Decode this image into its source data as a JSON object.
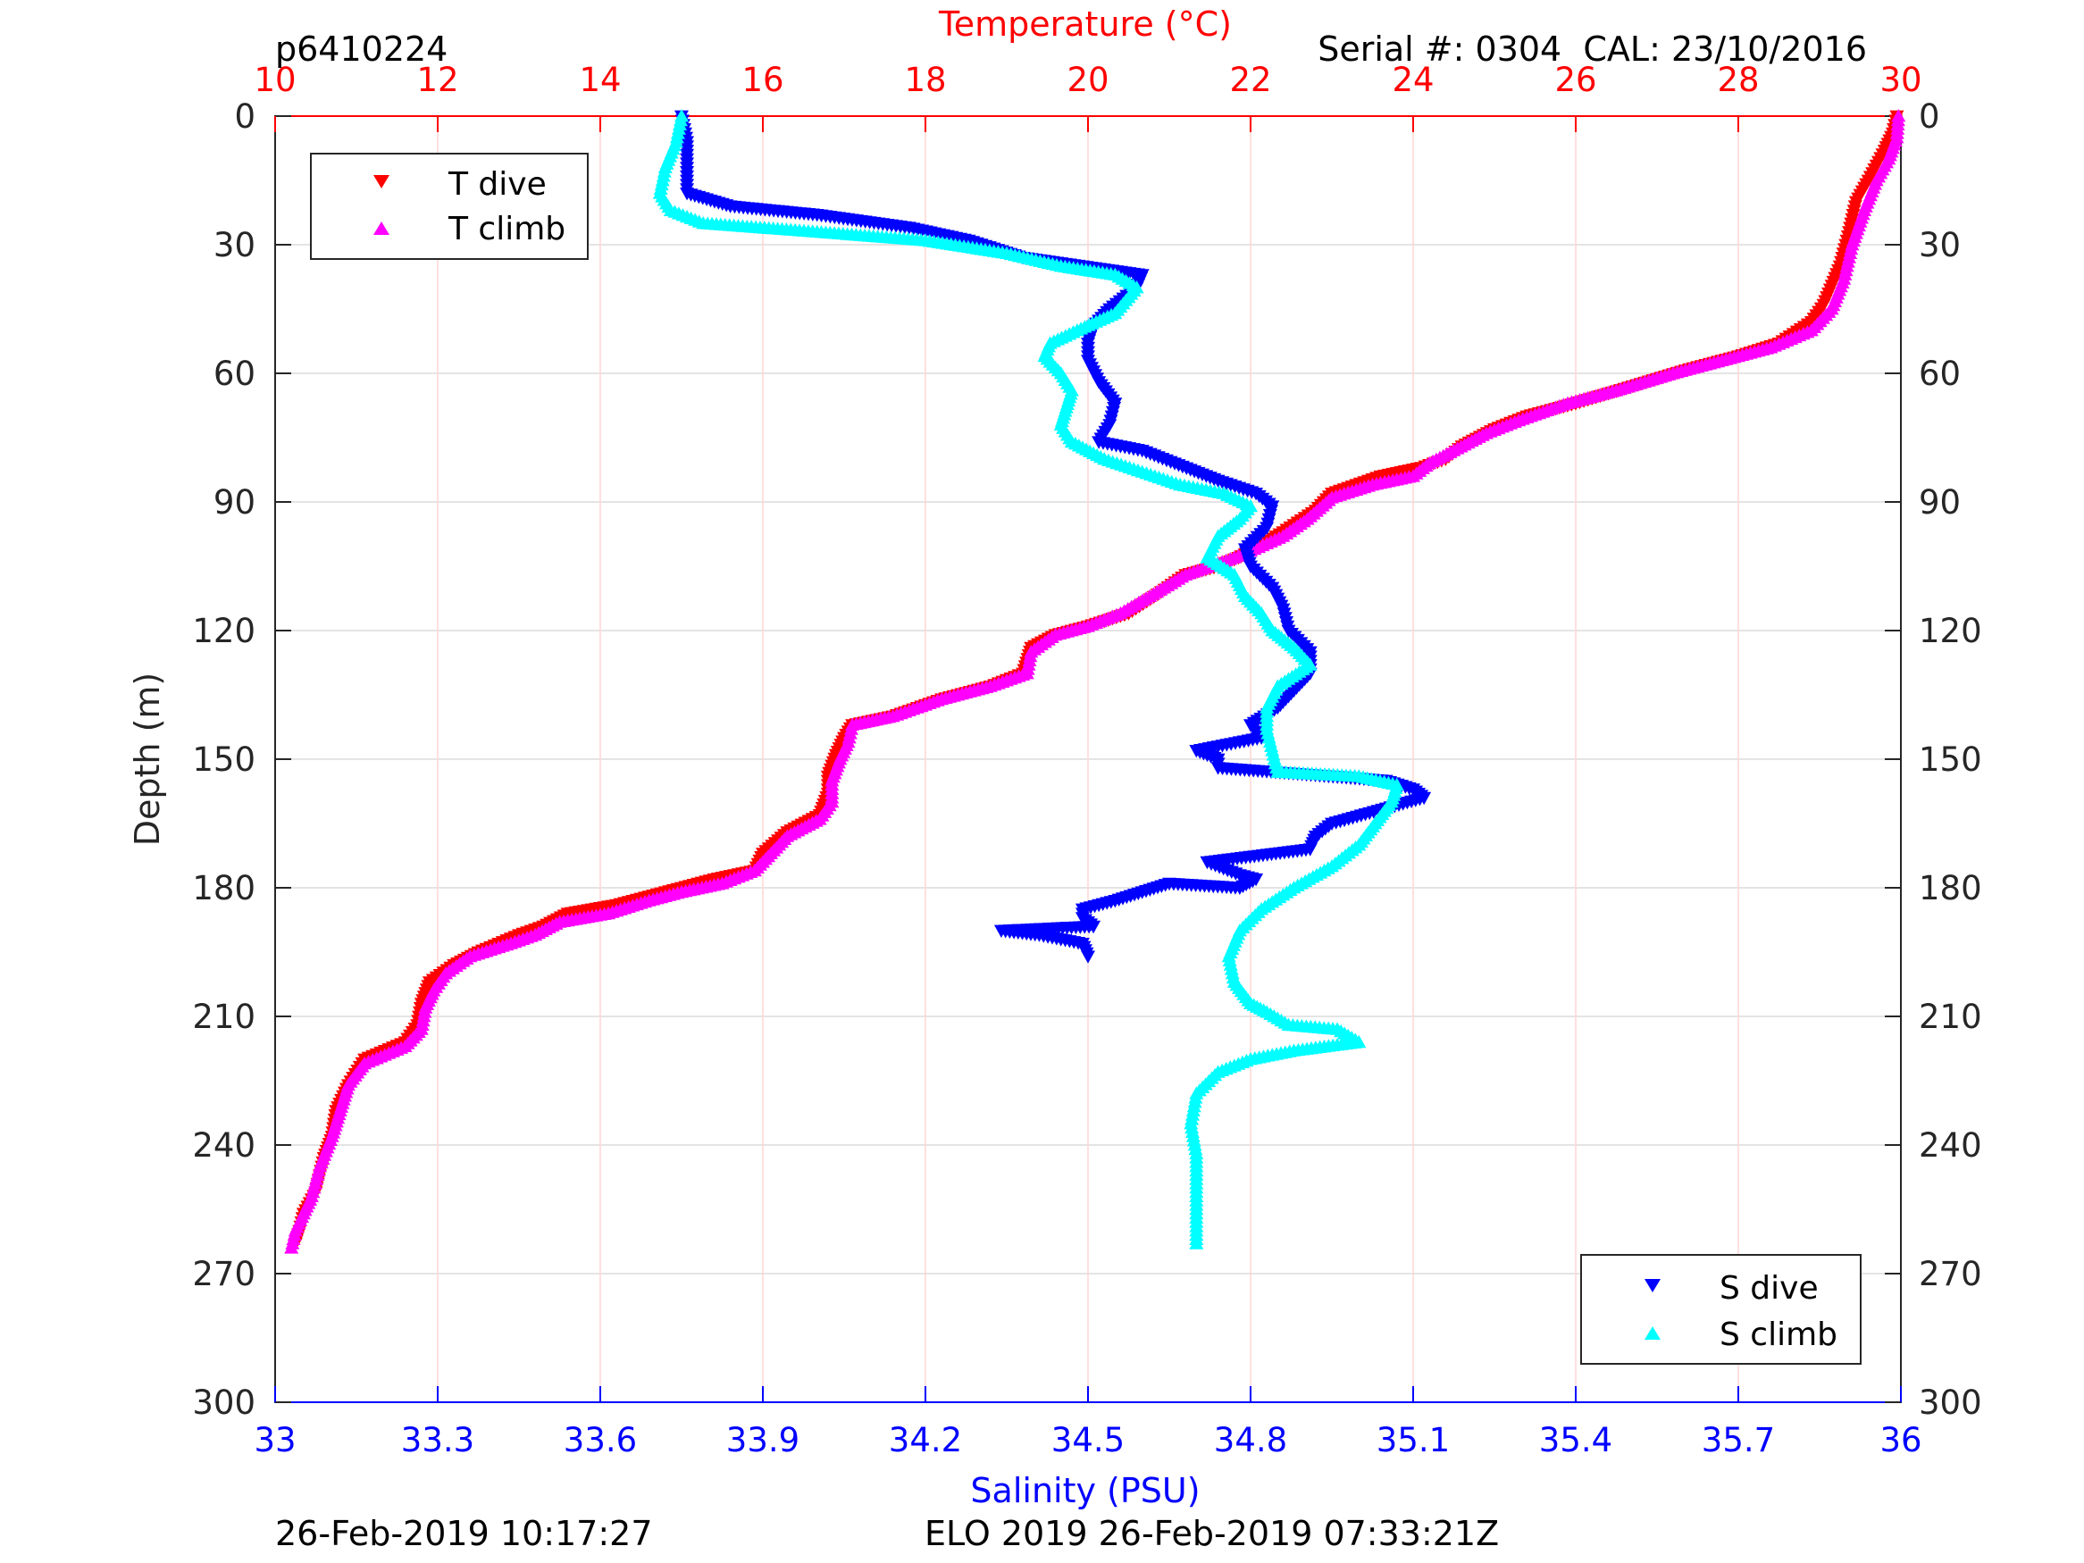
{
  "chart_data": {
    "type": "scatter",
    "header_left": "p6410224",
    "header_right": "Serial #: 0304  CAL: 23/10/2016",
    "footer_left": "26-Feb-2019 10:17:27",
    "footer_right": "ELO 2019 26-Feb-2019 07:33:21Z",
    "ylabel": "Depth (m)",
    "ylim": [
      0,
      300
    ],
    "y_reversed": true,
    "yticks": [
      0,
      30,
      60,
      90,
      120,
      150,
      180,
      210,
      240,
      270,
      300
    ],
    "temperature_axis": {
      "label": "Temperature (°C)",
      "lim": [
        10,
        30
      ],
      "ticks": [
        10,
        12,
        14,
        16,
        18,
        20,
        22,
        24,
        26,
        28,
        30
      ],
      "color": "#ff0000",
      "position": "top",
      "grid": true
    },
    "salinity_axis": {
      "label": "Salinity (PSU)",
      "lim": [
        33,
        36
      ],
      "ticks": [
        "33",
        "33.3",
        "33.6",
        "33.9",
        "34.2",
        "34.5",
        "34.8",
        "35.1",
        "35.4",
        "35.7",
        "36"
      ],
      "color": "#0000ff",
      "position": "bottom",
      "grid": false
    },
    "legend_temperature": {
      "placement": "top-left",
      "entries": [
        "T dive",
        "T climb"
      ]
    },
    "legend_salinity": {
      "placement": "bottom-right",
      "entries": [
        "S dive",
        "S climb"
      ]
    },
    "series": [
      {
        "name": "T dive",
        "axis": "temperature",
        "marker": "triangle-down",
        "color": "#ff0000",
        "points": [
          [
            29.95,
            0
          ],
          [
            29.9,
            4
          ],
          [
            29.8,
            8
          ],
          [
            29.6,
            15
          ],
          [
            29.45,
            20
          ],
          [
            29.35,
            28
          ],
          [
            29.25,
            35
          ],
          [
            29.05,
            44
          ],
          [
            28.9,
            48
          ],
          [
            28.5,
            53
          ],
          [
            28.0,
            56
          ],
          [
            27.4,
            59
          ],
          [
            26.7,
            63
          ],
          [
            26.0,
            67
          ],
          [
            25.4,
            70
          ],
          [
            25.0,
            73
          ],
          [
            24.6,
            77
          ],
          [
            24.4,
            80
          ],
          [
            24.1,
            82
          ],
          [
            23.6,
            84
          ],
          [
            23.0,
            88
          ],
          [
            22.8,
            92
          ],
          [
            22.4,
            97
          ],
          [
            22.05,
            101
          ],
          [
            21.85,
            103
          ],
          [
            21.6,
            105
          ],
          [
            21.2,
            107
          ],
          [
            20.9,
            111
          ],
          [
            20.5,
            116
          ],
          [
            20.0,
            119
          ],
          [
            19.6,
            121
          ],
          [
            19.3,
            124
          ],
          [
            19.2,
            130
          ],
          [
            18.8,
            133
          ],
          [
            18.2,
            136
          ],
          [
            17.6,
            140
          ],
          [
            17.1,
            142
          ],
          [
            17.0,
            145
          ],
          [
            16.9,
            149
          ],
          [
            16.8,
            154
          ],
          [
            16.8,
            158
          ],
          [
            16.7,
            163
          ],
          [
            16.3,
            167
          ],
          [
            16.0,
            172
          ],
          [
            15.9,
            176
          ],
          [
            15.4,
            178
          ],
          [
            15.0,
            180
          ],
          [
            14.6,
            182
          ],
          [
            14.2,
            184
          ],
          [
            13.6,
            186
          ],
          [
            13.3,
            189
          ],
          [
            13.0,
            191
          ],
          [
            12.5,
            195
          ],
          [
            12.2,
            198
          ],
          [
            11.9,
            202
          ],
          [
            11.8,
            207
          ],
          [
            11.75,
            212
          ],
          [
            11.6,
            216
          ],
          [
            11.1,
            220
          ],
          [
            10.9,
            226
          ],
          [
            10.75,
            232
          ],
          [
            10.7,
            238
          ],
          [
            10.6,
            243
          ],
          [
            10.5,
            251
          ],
          [
            10.35,
            256
          ],
          [
            10.3,
            260
          ],
          [
            10.25,
            263
          ]
        ]
      },
      {
        "name": "T climb",
        "axis": "temperature",
        "marker": "triangle-up",
        "color": "#ff00ff",
        "points": [
          [
            29.97,
            0
          ],
          [
            29.95,
            5
          ],
          [
            29.85,
            10
          ],
          [
            29.7,
            15
          ],
          [
            29.55,
            22
          ],
          [
            29.4,
            30
          ],
          [
            29.3,
            38
          ],
          [
            29.15,
            45
          ],
          [
            28.9,
            50
          ],
          [
            28.4,
            54
          ],
          [
            27.8,
            57
          ],
          [
            27.2,
            60
          ],
          [
            26.5,
            64
          ],
          [
            25.9,
            67
          ],
          [
            25.3,
            71
          ],
          [
            24.9,
            74
          ],
          [
            24.5,
            78
          ],
          [
            24.2,
            81
          ],
          [
            24.0,
            84
          ],
          [
            23.5,
            86
          ],
          [
            23.0,
            89
          ],
          [
            22.7,
            94
          ],
          [
            22.4,
            98
          ],
          [
            22.05,
            101
          ],
          [
            21.8,
            103
          ],
          [
            21.5,
            105
          ],
          [
            21.2,
            107
          ],
          [
            20.85,
            111
          ],
          [
            20.4,
            116
          ],
          [
            20.0,
            119
          ],
          [
            19.6,
            121
          ],
          [
            19.3,
            125
          ],
          [
            19.25,
            130
          ],
          [
            18.8,
            133
          ],
          [
            18.2,
            136
          ],
          [
            17.6,
            140
          ],
          [
            17.1,
            142
          ],
          [
            17.05,
            146
          ],
          [
            16.95,
            150
          ],
          [
            16.85,
            155
          ],
          [
            16.85,
            160
          ],
          [
            16.7,
            164
          ],
          [
            16.3,
            168
          ],
          [
            16.1,
            172
          ],
          [
            15.9,
            176
          ],
          [
            15.5,
            179
          ],
          [
            15.0,
            181
          ],
          [
            14.6,
            183
          ],
          [
            14.1,
            186
          ],
          [
            13.5,
            188
          ],
          [
            13.2,
            191
          ],
          [
            12.9,
            193
          ],
          [
            12.4,
            196
          ],
          [
            12.1,
            200
          ],
          [
            11.95,
            204
          ],
          [
            11.85,
            208
          ],
          [
            11.8,
            213
          ],
          [
            11.6,
            217
          ],
          [
            11.1,
            221
          ],
          [
            10.9,
            226
          ],
          [
            10.8,
            232
          ],
          [
            10.7,
            238
          ],
          [
            10.55,
            245
          ],
          [
            10.45,
            252
          ],
          [
            10.35,
            256
          ],
          [
            10.25,
            260
          ],
          [
            10.2,
            264
          ]
        ]
      },
      {
        "name": "S dive",
        "axis": "salinity",
        "marker": "triangle-down",
        "color": "#0000ff",
        "points": [
          [
            33.75,
            0
          ],
          [
            33.76,
            6
          ],
          [
            33.76,
            12
          ],
          [
            33.76,
            18
          ],
          [
            33.84,
            21
          ],
          [
            34.0,
            23
          ],
          [
            34.17,
            26
          ],
          [
            34.28,
            29
          ],
          [
            34.38,
            33
          ],
          [
            34.49,
            35
          ],
          [
            34.6,
            37
          ],
          [
            34.59,
            40
          ],
          [
            34.54,
            45
          ],
          [
            34.51,
            49
          ],
          [
            34.5,
            53
          ],
          [
            34.5,
            57
          ],
          [
            34.52,
            62
          ],
          [
            34.55,
            67
          ],
          [
            34.54,
            72
          ],
          [
            34.52,
            76
          ],
          [
            34.6,
            78
          ],
          [
            34.66,
            81
          ],
          [
            34.74,
            85
          ],
          [
            34.81,
            88
          ],
          [
            34.84,
            91
          ],
          [
            34.83,
            96
          ],
          [
            34.79,
            101
          ],
          [
            34.8,
            105
          ],
          [
            34.84,
            110
          ],
          [
            34.86,
            115
          ],
          [
            34.87,
            120
          ],
          [
            34.91,
            125
          ],
          [
            34.91,
            130
          ],
          [
            34.88,
            134
          ],
          [
            34.85,
            138
          ],
          [
            34.8,
            142
          ],
          [
            34.82,
            145
          ],
          [
            34.7,
            148
          ],
          [
            34.74,
            150
          ],
          [
            34.74,
            152
          ],
          [
            35.05,
            155
          ],
          [
            35.1,
            157
          ],
          [
            35.12,
            159
          ],
          [
            34.95,
            165
          ],
          [
            34.92,
            168
          ],
          [
            34.91,
            171
          ],
          [
            34.72,
            174
          ],
          [
            34.78,
            177
          ],
          [
            34.81,
            178
          ],
          [
            34.78,
            180
          ],
          [
            34.65,
            179
          ],
          [
            34.6,
            181
          ],
          [
            34.55,
            183
          ],
          [
            34.49,
            185
          ],
          [
            34.49,
            187
          ],
          [
            34.51,
            189
          ],
          [
            34.34,
            190
          ],
          [
            34.41,
            191
          ],
          [
            34.49,
            193
          ],
          [
            34.5,
            196
          ]
        ]
      },
      {
        "name": "S climb",
        "axis": "salinity",
        "marker": "triangle-up",
        "color": "#00ffff",
        "points": [
          [
            33.75,
            0
          ],
          [
            33.74,
            6
          ],
          [
            33.72,
            12
          ],
          [
            33.71,
            18
          ],
          [
            33.73,
            22
          ],
          [
            33.79,
            25
          ],
          [
            34.0,
            27
          ],
          [
            34.2,
            29
          ],
          [
            34.35,
            32
          ],
          [
            34.45,
            35
          ],
          [
            34.55,
            37
          ],
          [
            34.59,
            40
          ],
          [
            34.55,
            46
          ],
          [
            34.48,
            50
          ],
          [
            34.43,
            53
          ],
          [
            34.42,
            56
          ],
          [
            34.45,
            60
          ],
          [
            34.47,
            64
          ],
          [
            34.46,
            68
          ],
          [
            34.45,
            72
          ],
          [
            34.47,
            76
          ],
          [
            34.53,
            80
          ],
          [
            34.6,
            83
          ],
          [
            34.67,
            86
          ],
          [
            34.75,
            88
          ],
          [
            34.8,
            91
          ],
          [
            34.78,
            94
          ],
          [
            34.74,
            98
          ],
          [
            34.72,
            103
          ],
          [
            34.77,
            107
          ],
          [
            34.79,
            112
          ],
          [
            34.82,
            116
          ],
          [
            34.84,
            120
          ],
          [
            34.88,
            124
          ],
          [
            34.91,
            128
          ],
          [
            34.85,
            133
          ],
          [
            34.83,
            138
          ],
          [
            34.83,
            143
          ],
          [
            34.84,
            148
          ],
          [
            34.85,
            153
          ],
          [
            35.0,
            154
          ],
          [
            35.07,
            156
          ],
          [
            35.06,
            160
          ],
          [
            35.03,
            165
          ],
          [
            35.0,
            170
          ],
          [
            34.95,
            175
          ],
          [
            34.88,
            180
          ],
          [
            34.82,
            185
          ],
          [
            34.78,
            190
          ],
          [
            34.76,
            196
          ],
          [
            34.77,
            202
          ],
          [
            34.8,
            207
          ],
          [
            34.83,
            209
          ],
          [
            34.87,
            212
          ],
          [
            34.96,
            213
          ],
          [
            35.0,
            216
          ],
          [
            34.88,
            218
          ],
          [
            34.8,
            220
          ],
          [
            34.74,
            223
          ],
          [
            34.7,
            228
          ],
          [
            34.69,
            235
          ],
          [
            34.7,
            242
          ],
          [
            34.7,
            250
          ],
          [
            34.7,
            257
          ],
          [
            34.7,
            263
          ]
        ]
      }
    ]
  }
}
